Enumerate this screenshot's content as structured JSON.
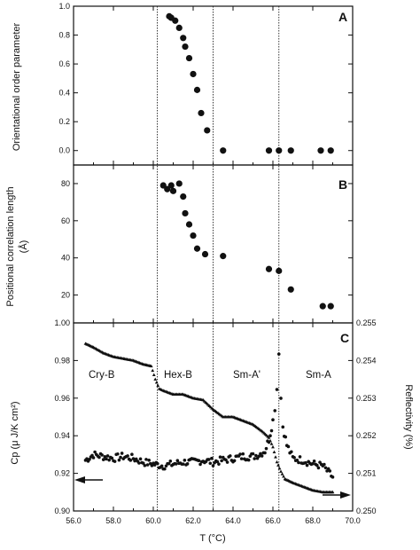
{
  "chart_data": [
    {
      "type": "scatter",
      "panel": "A",
      "ylabel": "Orientational order parameter",
      "xlim": [
        56.0,
        70.0
      ],
      "ylim": [
        -0.1,
        1.0
      ],
      "yticks": [
        0.0,
        0.2,
        0.4,
        0.6,
        0.8,
        1.0
      ],
      "ytick_labels": [
        "0.0",
        "0.2",
        "0.4",
        "0.6",
        "0.8",
        "1.0"
      ],
      "points": [
        [
          60.8,
          0.93
        ],
        [
          60.9,
          0.92
        ],
        [
          61.1,
          0.9
        ],
        [
          61.3,
          0.85
        ],
        [
          61.5,
          0.78
        ],
        [
          61.6,
          0.72
        ],
        [
          61.8,
          0.64
        ],
        [
          62.0,
          0.53
        ],
        [
          62.2,
          0.42
        ],
        [
          62.4,
          0.26
        ],
        [
          62.7,
          0.14
        ],
        [
          63.5,
          0.0
        ],
        [
          65.8,
          0.0
        ],
        [
          66.3,
          0.0
        ],
        [
          66.9,
          0.0
        ],
        [
          68.4,
          0.0
        ],
        [
          68.9,
          0.0
        ]
      ]
    },
    {
      "type": "scatter",
      "panel": "B",
      "ylabel": "Positional correlation length",
      "yunit": "(Å)",
      "xlim": [
        56.0,
        70.0
      ],
      "ylim": [
        5,
        90
      ],
      "yticks": [
        20,
        40,
        60,
        80
      ],
      "ytick_labels": [
        "20",
        "40",
        "60",
        "80"
      ],
      "points": [
        [
          60.5,
          79
        ],
        [
          60.7,
          77
        ],
        [
          60.9,
          79
        ],
        [
          61.0,
          76
        ],
        [
          61.3,
          80
        ],
        [
          61.5,
          73
        ],
        [
          61.6,
          64
        ],
        [
          61.8,
          58
        ],
        [
          62.0,
          52
        ],
        [
          62.2,
          45
        ],
        [
          62.6,
          42
        ],
        [
          63.5,
          41
        ],
        [
          65.8,
          34
        ],
        [
          66.3,
          33
        ],
        [
          66.9,
          23
        ],
        [
          68.5,
          14
        ],
        [
          68.9,
          14
        ]
      ]
    },
    {
      "type": "scatter",
      "panel": "C",
      "xlabel": "T (°C)",
      "ylabel": "Cp (μ J/K cm²)",
      "ylabel_right": "Reflectivity (%)",
      "xlim": [
        56.0,
        70.0
      ],
      "ylim": [
        0.9,
        1.0
      ],
      "ylim_right": [
        0.25,
        0.255
      ],
      "xticks": [
        56.0,
        58.0,
        60.0,
        62.0,
        64.0,
        66.0,
        68.0,
        70.0
      ],
      "xtick_labels": [
        "56.0",
        "58.0",
        "60.0",
        "62.0",
        "64.0",
        "66.0",
        "68.0",
        "70.0"
      ],
      "yticks": [
        0.9,
        0.92,
        0.94,
        0.96,
        0.98,
        1.0
      ],
      "ytick_labels": [
        "0.90",
        "0.92",
        "0.94",
        "0.96",
        "0.98",
        "1.00"
      ],
      "yticks_right": [
        0.25,
        0.251,
        0.252,
        0.253,
        0.254,
        0.255
      ],
      "ytick_labels_right": [
        "0.250",
        "0.251",
        "0.252",
        "0.253",
        "0.254",
        "0.255"
      ],
      "series": [
        {
          "axis": "right",
          "marker": "triangle",
          "x": [
            56.6,
            57.0,
            57.5,
            58.0,
            58.5,
            59.0,
            59.5,
            59.9,
            60.1,
            60.3,
            60.5,
            61.0,
            61.5,
            62.0,
            62.5,
            63.0,
            63.5,
            64.0,
            64.5,
            65.0,
            65.5,
            65.8,
            66.0,
            66.2,
            66.4,
            66.6,
            67.0,
            67.5,
            68.0,
            68.5,
            69.0
          ],
          "values": [
            0.25445,
            0.25435,
            0.2542,
            0.2541,
            0.25405,
            0.254,
            0.2539,
            0.25385,
            0.2535,
            0.25325,
            0.2532,
            0.2531,
            0.2531,
            0.253,
            0.25295,
            0.2527,
            0.2525,
            0.2525,
            0.2524,
            0.2523,
            0.2521,
            0.25195,
            0.2517,
            0.2513,
            0.25105,
            0.25085,
            0.25075,
            0.25065,
            0.25055,
            0.2505,
            0.2505
          ]
        },
        {
          "axis": "left",
          "marker": "circle",
          "x": [
            56.6,
            57.0,
            57.5,
            58.0,
            58.5,
            59.0,
            59.5,
            60.0,
            60.5,
            61.0,
            61.5,
            62.0,
            62.5,
            63.0,
            63.5,
            64.0,
            64.5,
            65.0,
            65.3,
            65.6,
            65.8,
            66.0,
            66.1,
            66.2,
            66.3,
            66.4,
            66.5,
            66.7,
            67.0,
            67.5,
            68.0,
            68.5,
            69.0
          ],
          "values": [
            0.927,
            0.93,
            0.929,
            0.928,
            0.929,
            0.928,
            0.926,
            0.925,
            0.924,
            0.925,
            0.926,
            0.926,
            0.927,
            0.926,
            0.927,
            0.928,
            0.929,
            0.929,
            0.93,
            0.932,
            0.938,
            0.948,
            0.955,
            0.965,
            0.985,
            0.96,
            0.945,
            0.935,
            0.928,
            0.927,
            0.925,
            0.924,
            0.918
          ]
        }
      ]
    }
  ],
  "panel_letters": {
    "a": "A",
    "b": "B",
    "c": "C"
  },
  "phases": {
    "cry_b": "Cry-B",
    "hex_b": "Hex-B",
    "sm_a_prime": "Sm-A'",
    "sm_a": "Sm-A"
  },
  "transitions_x": [
    60.2,
    63.0,
    66.3
  ],
  "axis_labels": {
    "a_y": "Orientational order parameter",
    "b_y1": "Positional correlation length",
    "b_y2": "(Å)",
    "c_y": "Cp (μ J/K cm²)",
    "c_y_right": "Reflectivity (%)",
    "x": "T (°C)"
  }
}
